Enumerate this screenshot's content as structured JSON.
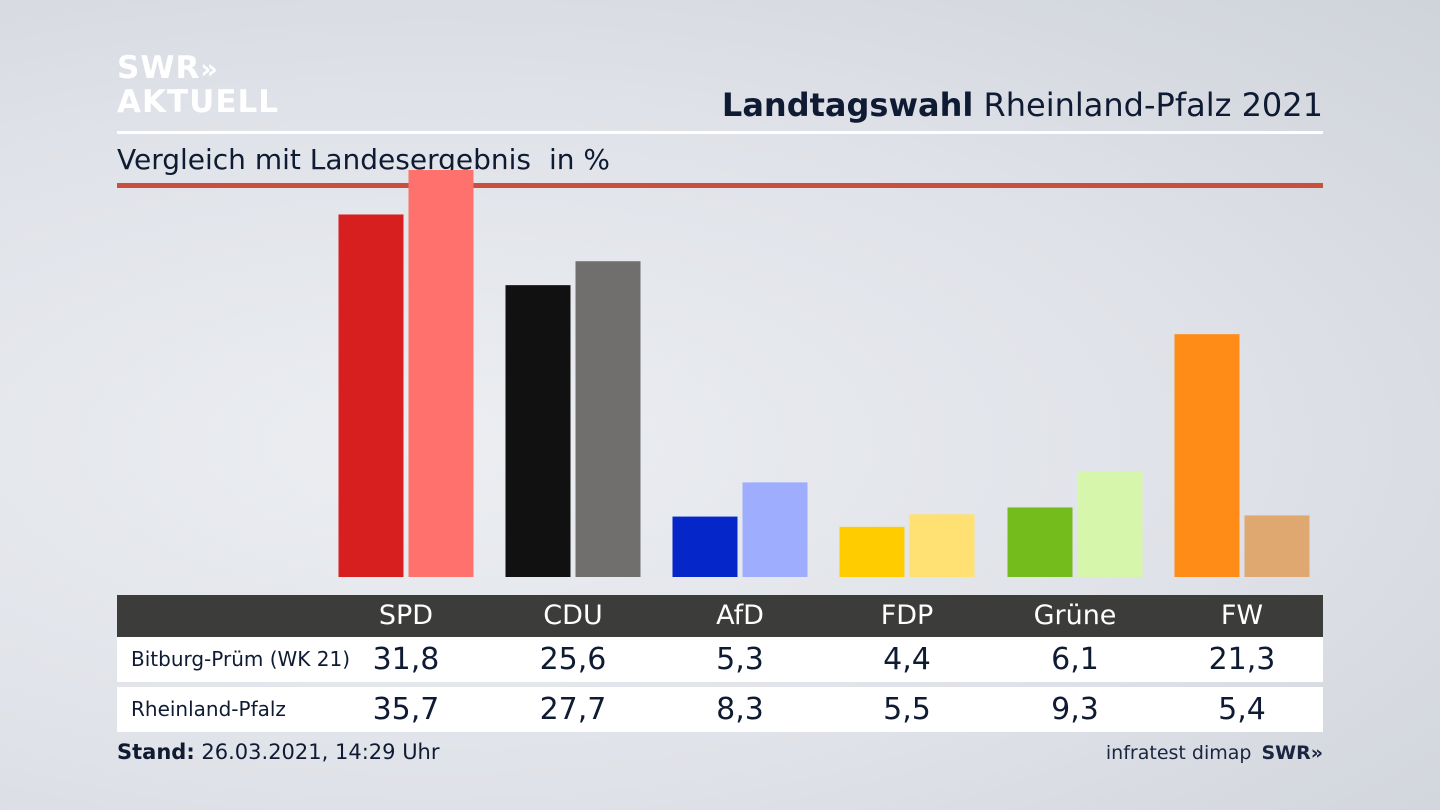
{
  "branding": {
    "logo_line1": "SWR",
    "logo_chevrons": "»",
    "logo_line2": "AKTUELL",
    "footer_logo": "SWR»"
  },
  "header": {
    "title_bold": "Landtagswahl",
    "title_rest": "Rheinland-Pfalz 2021",
    "subtitle": "Vergleich mit Landesergebnis",
    "unit": "in %"
  },
  "colors": {
    "accent_rule": "#c9503e",
    "table_header_bg": "#3c3c3b"
  },
  "chart_data": {
    "type": "bar",
    "categories": [
      "SPD",
      "CDU",
      "AfD",
      "FDP",
      "Grüne",
      "FW"
    ],
    "series": [
      {
        "name": "Bitburg-Prüm (WK 21)",
        "values": [
          31.8,
          25.6,
          5.3,
          4.4,
          6.1,
          21.3
        ],
        "display": [
          "31,8",
          "25,6",
          "5,3",
          "4,4",
          "6,1",
          "21,3"
        ],
        "colors": [
          "#d71f1f",
          "#111111",
          "#0526c8",
          "#ffcc00",
          "#74bb1c",
          "#ff8c17"
        ]
      },
      {
        "name": "Rheinland-Pfalz",
        "values": [
          35.7,
          27.7,
          8.3,
          5.5,
          9.3,
          5.4
        ],
        "display": [
          "35,7",
          "27,7",
          "8,3",
          "5,5",
          "9,3",
          "5,4"
        ],
        "colors": [
          "#ff716c",
          "#706f6e",
          "#9fadff",
          "#ffe073",
          "#d6f7ab",
          "#dfa871"
        ]
      }
    ],
    "ylim": [
      0,
      36
    ]
  },
  "footer": {
    "stand_label": "Stand:",
    "stand_value": "26.03.2021, 14:29 Uhr",
    "source": "infratest dimap"
  }
}
